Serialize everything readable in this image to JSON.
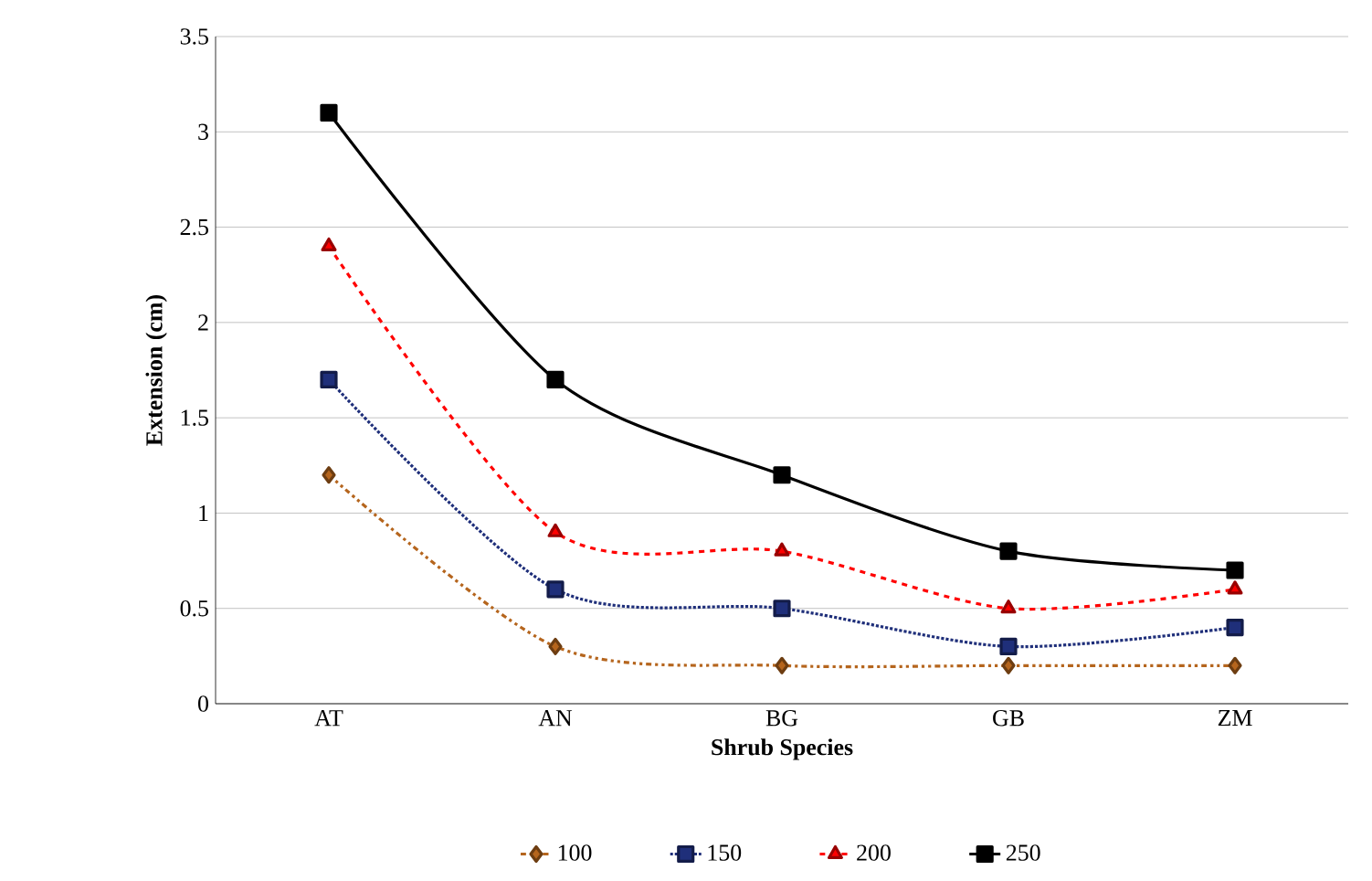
{
  "chart_data": {
    "type": "line",
    "xlabel": "Shrub Species",
    "ylabel": "Extension (cm)",
    "categories": [
      "AT",
      "AN",
      "BG",
      "GB",
      "ZM"
    ],
    "ylim": [
      0,
      3.5
    ],
    "yticks": [
      0,
      0.5,
      1,
      1.5,
      2,
      2.5,
      3,
      3.5
    ],
    "grid": "y",
    "legend": "bottom",
    "series": [
      {
        "name": "100",
        "color": "#b5651d",
        "values": [
          1.2,
          0.3,
          0.2,
          0.2,
          0.2
        ],
        "marker": "diamond",
        "line_style": "dashdotted"
      },
      {
        "name": "150",
        "color": "#1f2f7a",
        "values": [
          1.7,
          0.6,
          0.5,
          0.3,
          0.4
        ],
        "marker": "square",
        "line_style": "dotted"
      },
      {
        "name": "200",
        "color": "#ff0000",
        "values": [
          2.4,
          0.9,
          0.8,
          0.5,
          0.6
        ],
        "marker": "triangle",
        "line_style": "dashed"
      },
      {
        "name": "250",
        "color": "#000000",
        "values": [
          3.1,
          1.7,
          1.2,
          0.8,
          0.7
        ],
        "marker": "square",
        "line_style": "solid"
      }
    ]
  }
}
